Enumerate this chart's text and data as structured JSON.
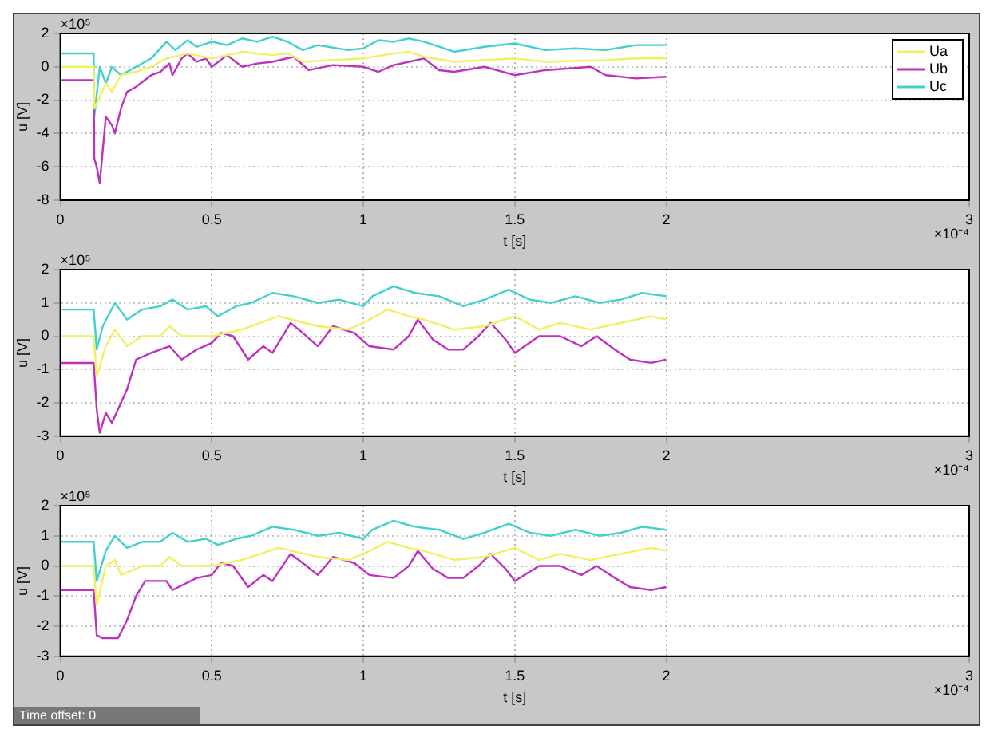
{
  "chart_data": [
    {
      "type": "line",
      "xlabel": "t [s]",
      "ylabel": "u [V]",
      "xlim": [
        0,
        3
      ],
      "xticks": [
        0,
        0.5,
        1,
        1.5,
        2,
        3
      ],
      "ylim": [
        -8,
        2
      ],
      "yticks": [
        -8,
        -6,
        -4,
        -2,
        0,
        2
      ],
      "grid": true,
      "legend": "top right",
      "annotations": [
        "×10⁵",
        "×10⁻⁴"
      ],
      "series": [
        {
          "name": "Ua",
          "color": "#f0f060",
          "x": [
            0,
            0.11,
            0.112,
            0.15,
            0.17,
            0.2,
            0.25,
            0.3,
            0.35,
            0.42,
            0.5,
            0.6,
            0.7,
            0.75,
            0.8,
            0.9,
            1.0,
            1.1,
            1.15,
            1.2,
            1.3,
            1.4,
            1.5,
            1.6,
            1.8,
            1.9,
            2.0
          ],
          "values": [
            0,
            0,
            -2.5,
            -1,
            -1.5,
            -0.5,
            -0.3,
            0,
            0.5,
            0.8,
            0.5,
            0.9,
            0.7,
            0.8,
            0.3,
            0.4,
            0.5,
            0.8,
            0.9,
            0.6,
            0.3,
            0.4,
            0.5,
            0.3,
            0.4,
            0.5,
            0.5
          ]
        },
        {
          "name": "Ub",
          "color": "#c030c0",
          "x": [
            0,
            0.11,
            0.112,
            0.12,
            0.13,
            0.14,
            0.15,
            0.17,
            0.18,
            0.2,
            0.22,
            0.25,
            0.3,
            0.33,
            0.36,
            0.37,
            0.4,
            0.42,
            0.45,
            0.48,
            0.5,
            0.55,
            0.6,
            0.65,
            0.7,
            0.77,
            0.82,
            0.9,
            1.0,
            1.05,
            1.1,
            1.15,
            1.2,
            1.25,
            1.3,
            1.4,
            1.5,
            1.6,
            1.75,
            1.8,
            1.9,
            2.0
          ],
          "values": [
            -0.8,
            -0.8,
            -5.5,
            -6,
            -7,
            -5,
            -3,
            -3.5,
            -4,
            -2.5,
            -1.5,
            -1.2,
            -0.5,
            -0.3,
            0.2,
            -0.5,
            0.5,
            0.8,
            0.3,
            0.5,
            0,
            0.7,
            0,
            0.2,
            0.3,
            0.6,
            -0.2,
            0.1,
            0,
            -0.3,
            0.1,
            0.3,
            0.5,
            -0.2,
            -0.3,
            0,
            -0.5,
            -0.2,
            0,
            -0.5,
            -0.7,
            -0.6
          ]
        },
        {
          "name": "Uc",
          "color": "#40d0d0",
          "x": [
            0,
            0.11,
            0.112,
            0.13,
            0.15,
            0.17,
            0.2,
            0.25,
            0.3,
            0.35,
            0.38,
            0.42,
            0.45,
            0.5,
            0.55,
            0.6,
            0.65,
            0.7,
            0.75,
            0.8,
            0.85,
            0.95,
            1.0,
            1.05,
            1.1,
            1.15,
            1.2,
            1.25,
            1.3,
            1.4,
            1.5,
            1.6,
            1.7,
            1.8,
            1.9,
            2.0
          ],
          "values": [
            0.8,
            0.8,
            -3,
            0,
            -1,
            0,
            -0.5,
            0,
            0.5,
            1.5,
            1,
            1.6,
            1.2,
            1.5,
            1.3,
            1.7,
            1.5,
            1.8,
            1.5,
            1,
            1.3,
            1,
            1.1,
            1.6,
            1.5,
            1.7,
            1.5,
            1.2,
            0.9,
            1.2,
            1.4,
            1,
            1.1,
            1,
            1.3,
            1.3
          ]
        }
      ]
    },
    {
      "type": "line",
      "xlabel": "t [s]",
      "ylabel": "u [V]",
      "xlim": [
        0,
        3
      ],
      "xticks": [
        0,
        0.5,
        1,
        1.5,
        2,
        3
      ],
      "ylim": [
        -3,
        2
      ],
      "yticks": [
        -3,
        -2,
        -1,
        0,
        1,
        2
      ],
      "grid": true,
      "annotations": [
        "×10⁵",
        "×10⁻⁴"
      ],
      "series": [
        {
          "color": "#40d0d0",
          "x": [
            0,
            0.11,
            0.12,
            0.14,
            0.18,
            0.22,
            0.27,
            0.33,
            0.37,
            0.42,
            0.48,
            0.52,
            0.58,
            0.63,
            0.7,
            0.77,
            0.85,
            0.92,
            1.0,
            1.03,
            1.1,
            1.17,
            1.25,
            1.33,
            1.4,
            1.48,
            1.55,
            1.62,
            1.7,
            1.78,
            1.85,
            1.92,
            2.0
          ],
          "values": [
            0.8,
            0.8,
            -0.4,
            0.3,
            1,
            0.5,
            0.8,
            0.9,
            1.1,
            0.8,
            0.9,
            0.6,
            0.9,
            1,
            1.3,
            1.2,
            1,
            1.1,
            0.9,
            1.2,
            1.5,
            1.3,
            1.2,
            0.9,
            1.1,
            1.4,
            1.1,
            1,
            1.2,
            1,
            1.1,
            1.3,
            1.2
          ]
        },
        {
          "color": "#f0f060",
          "x": [
            0,
            0.11,
            0.12,
            0.15,
            0.18,
            0.22,
            0.27,
            0.33,
            0.36,
            0.4,
            0.5,
            0.6,
            0.72,
            0.85,
            0.95,
            1.0,
            1.08,
            1.15,
            1.2,
            1.3,
            1.4,
            1.5,
            1.58,
            1.65,
            1.75,
            1.85,
            1.95,
            2.0
          ],
          "values": [
            0,
            0,
            -1.2,
            -0.3,
            0.2,
            -0.3,
            0,
            0,
            0.3,
            0,
            0,
            0.2,
            0.6,
            0.3,
            0.2,
            0.4,
            0.8,
            0.6,
            0.5,
            0.2,
            0.3,
            0.6,
            0.2,
            0.4,
            0.2,
            0.4,
            0.6,
            0.5
          ]
        },
        {
          "color": "#c030c0",
          "x": [
            0,
            0.11,
            0.12,
            0.13,
            0.15,
            0.17,
            0.19,
            0.22,
            0.25,
            0.3,
            0.36,
            0.4,
            0.45,
            0.5,
            0.53,
            0.57,
            0.62,
            0.67,
            0.7,
            0.76,
            0.8,
            0.85,
            0.9,
            0.97,
            1.02,
            1.1,
            1.15,
            1.18,
            1.23,
            1.28,
            1.33,
            1.38,
            1.42,
            1.47,
            1.5,
            1.58,
            1.65,
            1.72,
            1.77,
            1.83,
            1.88,
            1.95,
            2.0
          ],
          "values": [
            -0.8,
            -0.8,
            -2.2,
            -2.9,
            -2.3,
            -2.6,
            -2.2,
            -1.6,
            -0.7,
            -0.5,
            -0.3,
            -0.7,
            -0.4,
            -0.2,
            0.1,
            0,
            -0.7,
            -0.3,
            -0.5,
            0.4,
            0.1,
            -0.3,
            0.3,
            0.1,
            -0.3,
            -0.4,
            0,
            0.5,
            -0.1,
            -0.4,
            -0.4,
            0,
            0.4,
            -0.1,
            -0.5,
            0,
            0,
            -0.3,
            0,
            -0.4,
            -0.7,
            -0.8,
            -0.7
          ]
        }
      ]
    },
    {
      "type": "line",
      "xlabel": "t [s]",
      "ylabel": "u [V]",
      "xlim": [
        0,
        3
      ],
      "xticks": [
        0,
        0.5,
        1,
        1.5,
        2,
        3
      ],
      "ylim": [
        -3,
        2
      ],
      "yticks": [
        -3,
        -2,
        -1,
        0,
        1,
        2
      ],
      "grid": true,
      "annotations": [
        "×10⁵",
        "×10⁻⁴",
        "Time offset: 0"
      ],
      "series": [
        {
          "color": "#40d0d0",
          "x": [
            0,
            0.11,
            0.12,
            0.15,
            0.18,
            0.22,
            0.27,
            0.33,
            0.37,
            0.42,
            0.48,
            0.52,
            0.58,
            0.63,
            0.7,
            0.77,
            0.85,
            0.92,
            1.0,
            1.03,
            1.1,
            1.17,
            1.25,
            1.33,
            1.4,
            1.48,
            1.55,
            1.62,
            1.7,
            1.78,
            1.85,
            1.92,
            2.0
          ],
          "values": [
            0.8,
            0.8,
            -0.5,
            0.5,
            1,
            0.6,
            0.8,
            0.8,
            1.1,
            0.8,
            0.9,
            0.7,
            0.9,
            1,
            1.3,
            1.2,
            1,
            1.1,
            0.9,
            1.2,
            1.5,
            1.3,
            1.2,
            0.9,
            1.1,
            1.4,
            1.1,
            1,
            1.2,
            1,
            1.1,
            1.3,
            1.2
          ]
        },
        {
          "color": "#f0f060",
          "x": [
            0,
            0.11,
            0.12,
            0.15,
            0.18,
            0.2,
            0.27,
            0.33,
            0.36,
            0.4,
            0.5,
            0.6,
            0.72,
            0.85,
            0.95,
            1.0,
            1.08,
            1.15,
            1.2,
            1.3,
            1.4,
            1.5,
            1.58,
            1.65,
            1.75,
            1.85,
            1.95,
            2.0
          ],
          "values": [
            0,
            0,
            -1.3,
            0,
            0.2,
            -0.3,
            0,
            0,
            0.3,
            0,
            0,
            0.2,
            0.6,
            0.3,
            0.2,
            0.4,
            0.8,
            0.6,
            0.5,
            0.2,
            0.3,
            0.6,
            0.2,
            0.4,
            0.2,
            0.4,
            0.6,
            0.5
          ]
        },
        {
          "color": "#c030c0",
          "x": [
            0,
            0.11,
            0.12,
            0.14,
            0.19,
            0.22,
            0.25,
            0.28,
            0.35,
            0.37,
            0.45,
            0.5,
            0.53,
            0.57,
            0.62,
            0.67,
            0.7,
            0.76,
            0.8,
            0.85,
            0.9,
            0.97,
            1.02,
            1.1,
            1.15,
            1.18,
            1.23,
            1.28,
            1.33,
            1.38,
            1.42,
            1.47,
            1.5,
            1.58,
            1.65,
            1.72,
            1.77,
            1.83,
            1.88,
            1.95,
            2.0
          ],
          "values": [
            -0.8,
            -0.8,
            -2.3,
            -2.4,
            -2.4,
            -1.8,
            -1,
            -0.5,
            -0.5,
            -0.8,
            -0.4,
            -0.3,
            0.1,
            0,
            -0.7,
            -0.3,
            -0.5,
            0.4,
            0.1,
            -0.3,
            0.3,
            0.1,
            -0.3,
            -0.4,
            0,
            0.5,
            -0.1,
            -0.4,
            -0.4,
            0,
            0.4,
            -0.1,
            -0.5,
            0,
            0,
            -0.3,
            0,
            -0.4,
            -0.7,
            -0.8,
            -0.7
          ]
        }
      ]
    }
  ]
}
